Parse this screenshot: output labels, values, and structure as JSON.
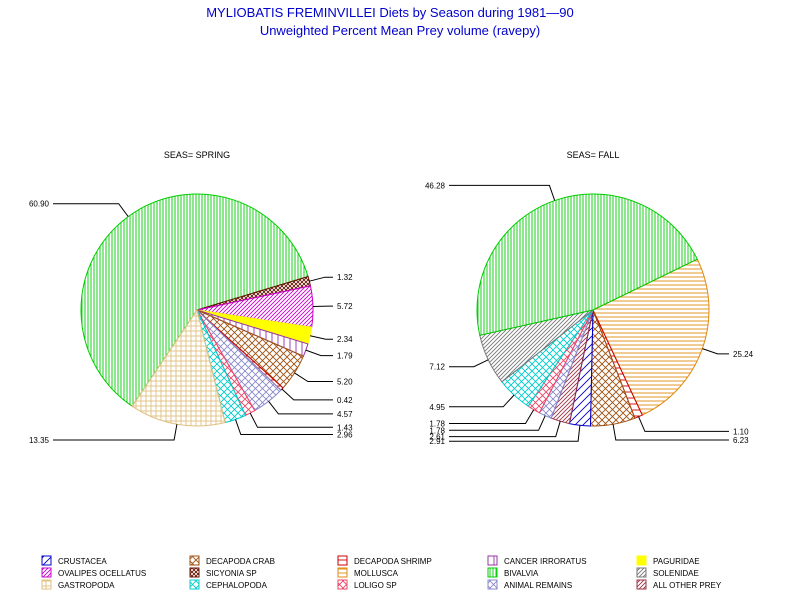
{
  "title_line1": "MYLIOBATIS FREMINVILLEI Diets by Season during 1981—90",
  "title_line2": "Unweighted Percent Mean Prey volume (ravepy)",
  "legend": [
    {
      "label": "CRUSTACEA",
      "color": "#0000cc",
      "pattern": "diag-right-sparse"
    },
    {
      "label": "DECAPODA CRAB",
      "color": "#a05010",
      "pattern": "cross"
    },
    {
      "label": "DECAPODA SHRIMP",
      "color": "#cc0000",
      "pattern": "horizontal-sparse"
    },
    {
      "label": "CANCER IRRORATUS",
      "color": "#9933aa",
      "pattern": "vertical-sparse"
    },
    {
      "label": "PAGURIDAE",
      "color": "#ffff00",
      "pattern": "solid"
    },
    {
      "label": "OVALIPES OCELLATUS",
      "color": "#cc00cc",
      "pattern": "diag-right"
    },
    {
      "label": "SICYONIA SP",
      "color": "#661100",
      "pattern": "cross-dense"
    },
    {
      "label": "MOLLUSCA",
      "color": "#e08a10",
      "pattern": "horizontal"
    },
    {
      "label": "BIVALVIA",
      "color": "#00cc00",
      "pattern": "vertical"
    },
    {
      "label": "SOLENIDAE",
      "color": "#777777",
      "pattern": "diag-right"
    },
    {
      "label": "GASTROPODA",
      "color": "#e0c080",
      "pattern": "grid"
    },
    {
      "label": "CEPHALOPODA",
      "color": "#00cccc",
      "pattern": "cross"
    },
    {
      "label": "LOLIGO SP",
      "color": "#ee4466",
      "pattern": "cross"
    },
    {
      "label": "ANIMAL REMAINS",
      "color": "#8888cc",
      "pattern": "cross"
    },
    {
      "label": "ALL OTHER PREY",
      "color": "#993344",
      "pattern": "diag-right"
    }
  ],
  "chart_data": [
    {
      "type": "pie",
      "title": "SEAS= SPRING",
      "slices": [
        {
          "category": "BIVALVIA",
          "value": 60.9,
          "label": "60.90"
        },
        {
          "category": "SICYONIA SP",
          "value": 1.32,
          "label": "1.32"
        },
        {
          "category": "OVALIPES OCELLATUS",
          "value": 5.72,
          "label": "5.72"
        },
        {
          "category": "PAGURIDAE",
          "value": 2.34,
          "label": "2.34"
        },
        {
          "category": "CANCER IRRORATUS",
          "value": 1.79,
          "label": "1.79"
        },
        {
          "category": "DECAPODA CRAB",
          "value": 5.2,
          "label": "5.20"
        },
        {
          "category": "DECAPODA SHRIMP",
          "value": 0.42,
          "label": "0.42"
        },
        {
          "category": "ANIMAL REMAINS",
          "value": 4.57,
          "label": "4.57"
        },
        {
          "category": "LOLIGO SP",
          "value": 1.43,
          "label": "1.43"
        },
        {
          "category": "CEPHALOPODA",
          "value": 2.96,
          "label": "2.96"
        },
        {
          "category": "GASTROPODA",
          "value": 13.35,
          "label": "13.35"
        }
      ]
    },
    {
      "type": "pie",
      "title": "SEAS= FALL",
      "slices": [
        {
          "category": "MOLLUSCA",
          "value": 25.24,
          "label": "25.24"
        },
        {
          "category": "DECAPODA SHRIMP",
          "value": 1.1,
          "label": "1.10"
        },
        {
          "category": "DECAPODA CRAB",
          "value": 6.23,
          "label": "6.23"
        },
        {
          "category": "CRUSTACEA",
          "value": 2.91,
          "label": "2.91"
        },
        {
          "category": "ALL OTHER PREY",
          "value": 2.61,
          "label": "2.61"
        },
        {
          "category": "ANIMAL REMAINS",
          "value": 1.78,
          "label": "1.78"
        },
        {
          "category": "LOLIGO SP",
          "value": 1.78,
          "label": "1.78"
        },
        {
          "category": "CEPHALOPODA",
          "value": 4.95,
          "label": "4.95"
        },
        {
          "category": "SOLENIDAE",
          "value": 7.12,
          "label": "7.12"
        },
        {
          "category": "BIVALVIA",
          "value": 46.28,
          "label": "46.28"
        }
      ]
    }
  ]
}
